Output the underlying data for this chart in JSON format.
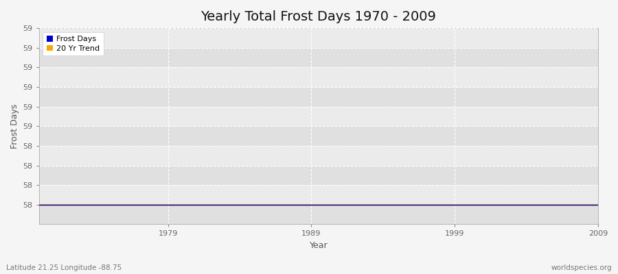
{
  "title": "Yearly Total Frost Days 1970 - 2009",
  "xlabel": "Year",
  "ylabel": "Frost Days",
  "subtitle_left": "Latitude 21.25 Longitude -88.75",
  "subtitle_right": "worldspecies.org",
  "years": [
    1970,
    1971,
    1972,
    1973,
    1974,
    1975,
    1976,
    1977,
    1978,
    1979,
    1980,
    1981,
    1982,
    1983,
    1984,
    1985,
    1986,
    1987,
    1988,
    1989,
    1990,
    1991,
    1992,
    1993,
    1994,
    1995,
    1996,
    1997,
    1998,
    1999,
    2000,
    2001,
    2002,
    2003,
    2004,
    2005,
    2006,
    2007,
    2008,
    2009
  ],
  "frost_days": [
    58,
    58,
    58,
    58,
    58,
    58,
    58,
    58,
    58,
    58,
    58,
    58,
    58,
    58,
    58,
    58,
    58,
    58,
    58,
    58,
    58,
    58,
    58,
    58,
    58,
    58,
    58,
    58,
    58,
    58,
    58,
    58,
    58,
    58,
    58,
    58,
    58,
    58,
    58,
    58
  ],
  "frost_color": "#0000cc",
  "trend_color": "#ffa500",
  "figure_bg_color": "#f5f5f5",
  "plot_bg_color": "#ebebeb",
  "plot_bg_color_alt": "#e0e0e0",
  "grid_color": "#ffffff",
  "grid_color_minor": "#d8d8d8",
  "ylim_min": 57.85,
  "ylim_max": 59.35,
  "xlim_min": 1970,
  "xlim_max": 2009,
  "ytick_positions": [
    58.0,
    58.15,
    58.3,
    58.45,
    58.6,
    58.75,
    58.9,
    59.05,
    59.2,
    59.35
  ],
  "ytick_labels": [
    "58",
    "58",
    "58",
    "58",
    "59",
    "59",
    "59",
    "59",
    "59",
    "59"
  ],
  "xticks": [
    1979,
    1989,
    1999,
    2009
  ],
  "title_fontsize": 14,
  "axis_fontsize": 9,
  "tick_fontsize": 8,
  "legend_frost": "Frost Days",
  "legend_trend": "20 Yr Trend"
}
